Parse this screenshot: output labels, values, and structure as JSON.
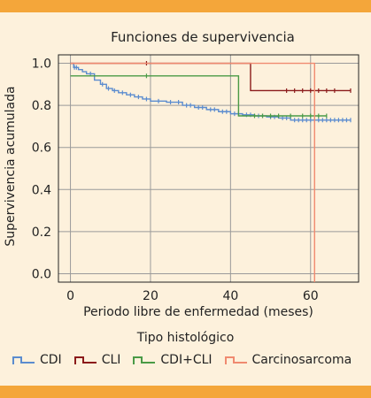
{
  "colors": {
    "band": "#f4a63a",
    "background": "#fdf1dc",
    "grid": "#9a9a9a",
    "axis": "#222222",
    "text": "#222222"
  },
  "chart_data": {
    "type": "line",
    "title": "Funciones de supervivencia",
    "xlabel": "Periodo libre de enfermedad (meses)",
    "ylabel": "Supervivencia acumulada",
    "xlim": [
      -3,
      72
    ],
    "ylim": [
      -0.04,
      1.04
    ],
    "x_ticks": [
      0,
      20,
      40,
      60
    ],
    "x_tick_labels": [
      "0",
      "20",
      "40",
      "60"
    ],
    "y_ticks": [
      0.0,
      0.2,
      0.4,
      0.6,
      0.8,
      1.0
    ],
    "y_tick_labels": [
      "0.0",
      "0.2",
      "0.4",
      "0.6",
      "0.8",
      "1.0"
    ],
    "grid": true,
    "legend_title": "Tipo histológico",
    "legend_position": "bottom",
    "series": [
      {
        "name": "CDI",
        "color": "#5b8ccf",
        "step": [
          [
            0,
            1.0
          ],
          [
            0.8,
            0.98
          ],
          [
            2,
            0.97
          ],
          [
            3,
            0.96
          ],
          [
            4,
            0.95
          ],
          [
            6,
            0.92
          ],
          [
            7.5,
            0.9
          ],
          [
            9,
            0.88
          ],
          [
            10.5,
            0.87
          ],
          [
            12,
            0.86
          ],
          [
            14,
            0.85
          ],
          [
            16,
            0.84
          ],
          [
            18,
            0.83
          ],
          [
            20,
            0.82
          ],
          [
            24,
            0.815
          ],
          [
            28,
            0.8
          ],
          [
            31,
            0.79
          ],
          [
            34,
            0.78
          ],
          [
            37,
            0.77
          ],
          [
            40,
            0.76
          ],
          [
            43,
            0.755
          ],
          [
            46,
            0.75
          ],
          [
            49,
            0.745
          ],
          [
            52,
            0.74
          ],
          [
            55,
            0.73
          ],
          [
            70,
            0.73
          ]
        ],
        "censored_x": [
          1,
          1.5,
          5,
          8,
          9.5,
          11,
          13,
          15,
          17,
          19,
          22,
          25,
          27,
          29,
          30,
          32,
          33,
          35,
          36,
          38,
          39,
          41,
          42,
          44,
          45,
          47,
          48,
          50,
          51,
          53,
          54,
          56,
          57,
          58,
          59,
          60,
          61,
          62,
          63,
          64,
          65,
          66,
          67,
          68,
          69,
          70
        ],
        "censored_y": [
          0.98,
          0.98,
          0.95,
          0.9,
          0.88,
          0.87,
          0.86,
          0.85,
          0.84,
          0.83,
          0.82,
          0.815,
          0.815,
          0.8,
          0.8,
          0.79,
          0.79,
          0.78,
          0.78,
          0.77,
          0.77,
          0.76,
          0.76,
          0.755,
          0.755,
          0.75,
          0.75,
          0.745,
          0.745,
          0.74,
          0.74,
          0.73,
          0.73,
          0.73,
          0.73,
          0.73,
          0.73,
          0.73,
          0.73,
          0.73,
          0.73,
          0.73,
          0.73,
          0.73,
          0.73,
          0.73
        ]
      },
      {
        "name": "CLI",
        "color": "#8b1a1a",
        "step": [
          [
            0,
            1.0
          ],
          [
            45,
            1.0
          ],
          [
            45,
            0.87
          ],
          [
            70,
            0.87
          ]
        ],
        "censored_x": [
          19,
          54,
          56,
          58,
          60,
          62,
          64,
          66,
          70
        ],
        "censored_y": [
          1.0,
          0.87,
          0.87,
          0.87,
          0.87,
          0.87,
          0.87,
          0.87,
          0.87
        ]
      },
      {
        "name": "CDI+CLI",
        "color": "#4a9a46",
        "step": [
          [
            0,
            0.94
          ],
          [
            42,
            0.94
          ],
          [
            42,
            0.75
          ],
          [
            64,
            0.75
          ]
        ],
        "censored_x": [
          19,
          46,
          48,
          50,
          52,
          55,
          58,
          60,
          62,
          64
        ],
        "censored_y": [
          0.94,
          0.75,
          0.75,
          0.75,
          0.75,
          0.75,
          0.75,
          0.75,
          0.75,
          0.75
        ]
      },
      {
        "name": "Carcinosarcoma",
        "color": "#f08a70",
        "step": [
          [
            0,
            1.0
          ],
          [
            61,
            1.0
          ],
          [
            61,
            -0.04
          ]
        ],
        "censored_x": [],
        "censored_y": []
      }
    ]
  }
}
